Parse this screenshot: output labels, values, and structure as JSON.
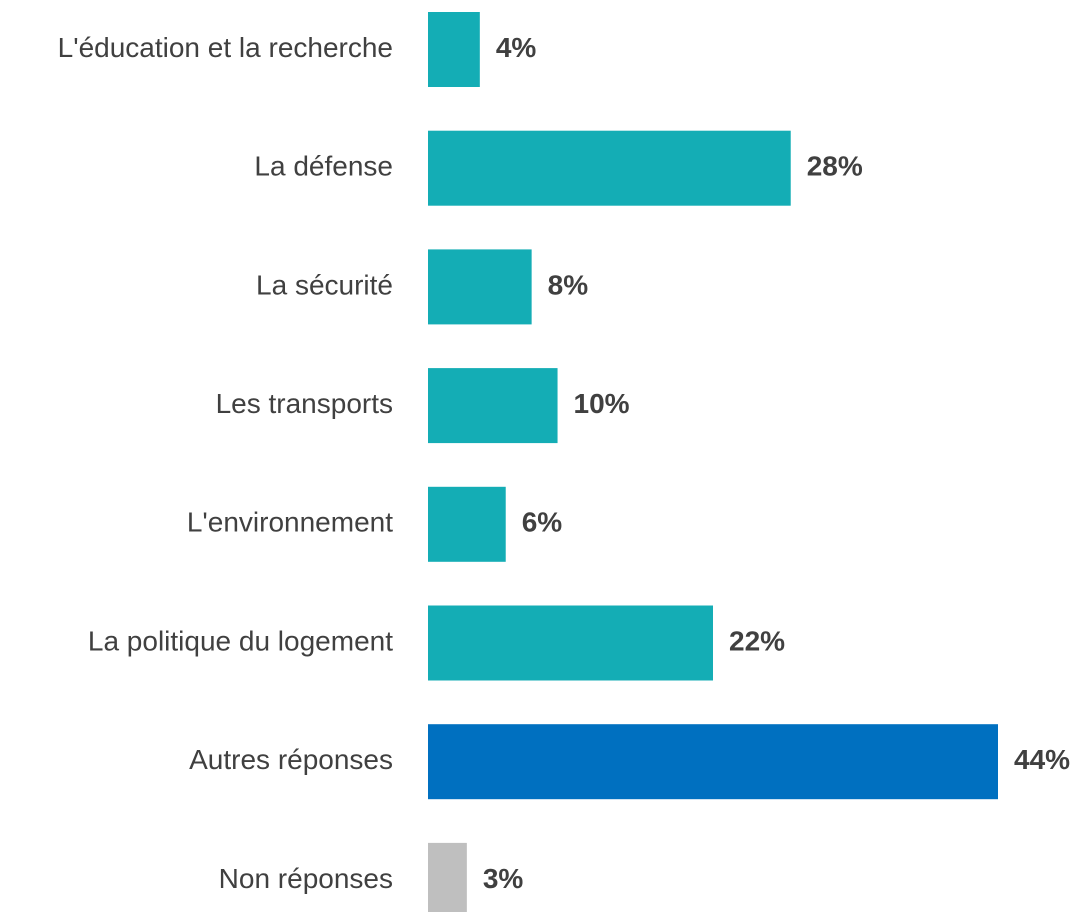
{
  "chart_data": {
    "type": "barh",
    "categories": [
      "L'éducation et la recherche",
      "La défense",
      "La sécurité",
      "Les transports",
      "L'environnement",
      "La politique du logement",
      "Autres réponses",
      "Non réponses"
    ],
    "values": [
      4,
      28,
      8,
      10,
      6,
      22,
      44,
      3
    ],
    "value_labels": [
      "4%",
      "28%",
      "8%",
      "10%",
      "6%",
      "22%",
      "44%",
      "3%"
    ],
    "colors": [
      "#14adb5",
      "#14adb5",
      "#14adb5",
      "#14adb5",
      "#14adb5",
      "#14adb5",
      "#0070c0",
      "#bfbfbf"
    ]
  }
}
